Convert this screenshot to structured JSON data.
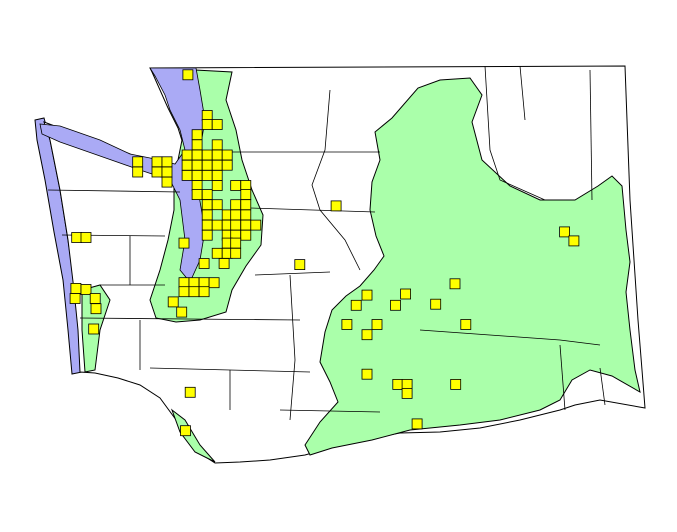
{
  "map": {
    "colors": {
      "land": "#ffffff",
      "outline": "#000000",
      "shaded_region": "#aaffaa",
      "water": "#aaaaf5",
      "marker_fill": "#ffff00",
      "marker_stroke": "#000000"
    },
    "marker_shape": "square",
    "markers": [
      [
        -122.82,
        48.94
      ],
      [
        -122.57,
        48.58
      ],
      [
        -122.57,
        48.5
      ],
      [
        -122.44,
        48.5
      ],
      [
        -122.7,
        48.41
      ],
      [
        -122.7,
        48.32
      ],
      [
        -122.44,
        48.32
      ],
      [
        -123.47,
        48.17
      ],
      [
        -123.47,
        48.08
      ],
      [
        -123.22,
        48.17
      ],
      [
        -123.09,
        48.17
      ],
      [
        -123.22,
        48.08
      ],
      [
        -123.09,
        48.08
      ],
      [
        -123.09,
        47.99
      ],
      [
        -122.83,
        48.23
      ],
      [
        -122.7,
        48.23
      ],
      [
        -122.57,
        48.23
      ],
      [
        -122.44,
        48.23
      ],
      [
        -122.31,
        48.23
      ],
      [
        -122.83,
        48.14
      ],
      [
        -122.7,
        48.14
      ],
      [
        -122.57,
        48.14
      ],
      [
        -122.44,
        48.14
      ],
      [
        -122.31,
        48.14
      ],
      [
        -122.83,
        48.05
      ],
      [
        -122.7,
        48.05
      ],
      [
        -122.57,
        48.05
      ],
      [
        -122.44,
        48.05
      ],
      [
        -122.7,
        47.96
      ],
      [
        -122.44,
        47.96
      ],
      [
        -122.2,
        47.96
      ],
      [
        -122.07,
        47.96
      ],
      [
        -122.7,
        47.88
      ],
      [
        -122.57,
        47.88
      ],
      [
        -122.07,
        47.88
      ],
      [
        -122.57,
        47.79
      ],
      [
        -122.44,
        47.79
      ],
      [
        -122.2,
        47.79
      ],
      [
        -122.07,
        47.79
      ],
      [
        -122.57,
        47.7
      ],
      [
        -122.31,
        47.7
      ],
      [
        -122.2,
        47.7
      ],
      [
        -122.07,
        47.7
      ],
      [
        -122.57,
        47.61
      ],
      [
        -122.44,
        47.61
      ],
      [
        -122.31,
        47.61
      ],
      [
        -122.2,
        47.61
      ],
      [
        -122.07,
        47.61
      ],
      [
        -121.94,
        47.61
      ],
      [
        -122.57,
        47.52
      ],
      [
        -122.31,
        47.52
      ],
      [
        -122.2,
        47.52
      ],
      [
        -122.07,
        47.52
      ],
      [
        -122.87,
        47.45
      ],
      [
        -122.31,
        47.45
      ],
      [
        -122.2,
        47.45
      ],
      [
        -122.44,
        47.36
      ],
      [
        -122.31,
        47.36
      ],
      [
        -122.2,
        47.36
      ],
      [
        -122.61,
        47.27
      ],
      [
        -122.35,
        47.27
      ],
      [
        -122.87,
        47.1
      ],
      [
        -122.74,
        47.1
      ],
      [
        -122.61,
        47.1
      ],
      [
        -122.48,
        47.1
      ],
      [
        -122.87,
        47.02
      ],
      [
        -122.74,
        47.02
      ],
      [
        -122.61,
        47.02
      ],
      [
        -123.01,
        46.93
      ],
      [
        -122.9,
        46.84
      ],
      [
        -120.9,
        47.78
      ],
      [
        -121.37,
        47.26
      ],
      [
        -124.26,
        47.5
      ],
      [
        -124.14,
        47.5
      ],
      [
        -117.94,
        47.55
      ],
      [
        -117.82,
        47.47
      ],
      [
        -124.27,
        47.05
      ],
      [
        -124.14,
        47.04
      ],
      [
        -124.28,
        46.96
      ],
      [
        -124.02,
        46.96
      ],
      [
        -124.01,
        46.87
      ],
      [
        -124.04,
        46.69
      ],
      [
        -122.79,
        46.13
      ],
      [
        -122.85,
        45.79
      ],
      [
        -119.36,
        47.09
      ],
      [
        -120.5,
        46.99
      ],
      [
        -120.0,
        47.0
      ],
      [
        -120.64,
        46.9
      ],
      [
        -120.13,
        46.9
      ],
      [
        -119.61,
        46.91
      ],
      [
        -120.76,
        46.73
      ],
      [
        -120.37,
        46.73
      ],
      [
        -120.5,
        46.64
      ],
      [
        -119.22,
        46.73
      ],
      [
        -120.5,
        46.29
      ],
      [
        -120.1,
        46.2
      ],
      [
        -119.98,
        46.2
      ],
      [
        -119.98,
        46.12
      ],
      [
        -119.35,
        46.2
      ],
      [
        -119.85,
        45.85
      ]
    ]
  }
}
